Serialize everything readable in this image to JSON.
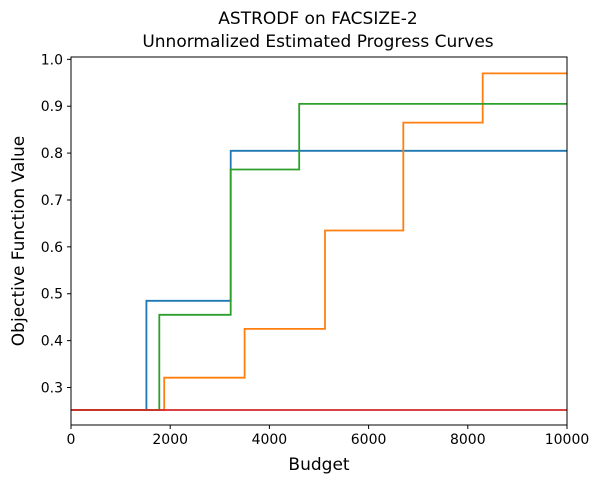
{
  "chart_data": {
    "type": "line",
    "step": true,
    "title": [
      "ASTRODF on FACSIZE-2",
      "Unnormalized Estimated Progress Curves"
    ],
    "xlabel": "Budget",
    "ylabel": "Objective Function Value",
    "xlim": [
      0,
      10000
    ],
    "ylim": [
      0.22,
      1.005
    ],
    "xticks": [
      0,
      2000,
      4000,
      6000,
      8000,
      10000
    ],
    "yticks": [
      0.3,
      0.4,
      0.5,
      0.6,
      0.7,
      0.8,
      0.9,
      1.0
    ],
    "grid": false,
    "legend": "none",
    "series": [
      {
        "color": "#1f77b4",
        "points": [
          [
            0,
            0.252
          ],
          [
            1520,
            0.252
          ],
          [
            1520,
            0.485
          ],
          [
            3220,
            0.485
          ],
          [
            3220,
            0.805
          ],
          [
            10000,
            0.805
          ]
        ]
      },
      {
        "color": "#ff7f0e",
        "points": [
          [
            0,
            0.252
          ],
          [
            1880,
            0.252
          ],
          [
            1880,
            0.321
          ],
          [
            3500,
            0.321
          ],
          [
            3500,
            0.425
          ],
          [
            5120,
            0.425
          ],
          [
            5120,
            0.635
          ],
          [
            6700,
            0.635
          ],
          [
            6700,
            0.865
          ],
          [
            8300,
            0.865
          ],
          [
            8300,
            0.97
          ],
          [
            10000,
            0.97
          ]
        ]
      },
      {
        "color": "#2ca02c",
        "points": [
          [
            0,
            0.252
          ],
          [
            1780,
            0.252
          ],
          [
            1780,
            0.455
          ],
          [
            3220,
            0.455
          ],
          [
            3220,
            0.765
          ],
          [
            4600,
            0.765
          ],
          [
            4600,
            0.905
          ],
          [
            10000,
            0.905
          ]
        ]
      },
      {
        "color": "#d62728",
        "points": [
          [
            0,
            0.252
          ],
          [
            10000,
            0.252
          ]
        ]
      }
    ]
  }
}
